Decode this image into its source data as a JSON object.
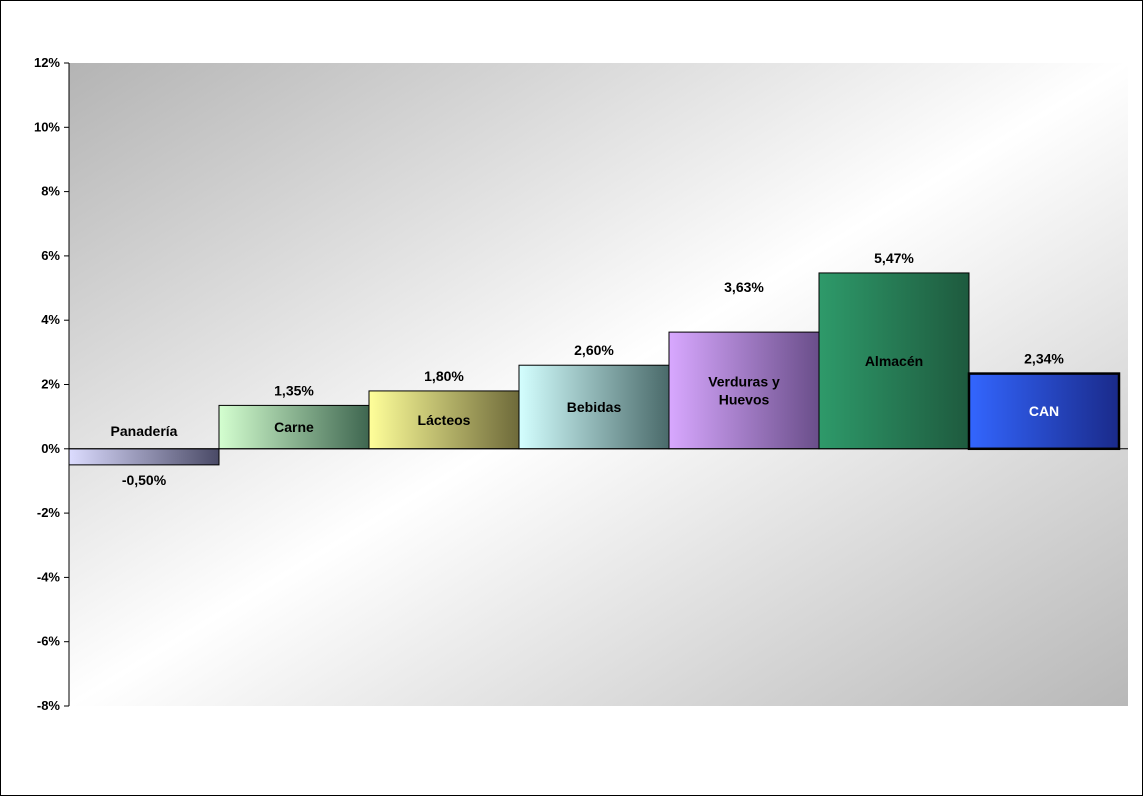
{
  "chart_data": {
    "type": "bar",
    "title": "",
    "xlabel": "",
    "ylabel": "",
    "categories": [
      "Panadería",
      "Carne",
      "Lácteos",
      "Bebidas",
      "Verduras y Huevos",
      "Almacén",
      "CAN"
    ],
    "category_lines": [
      [
        "Panadería"
      ],
      [
        "Carne"
      ],
      [
        "Lácteos"
      ],
      [
        "Bebidas"
      ],
      [
        "Verduras y",
        "Huevos"
      ],
      [
        "Almacén"
      ],
      [
        "CAN"
      ]
    ],
    "values": [
      -0.5,
      1.35,
      1.8,
      2.6,
      3.63,
      5.47,
      2.34
    ],
    "value_labels": [
      "-0,50%",
      "1,35%",
      "1,80%",
      "2,60%",
      "3,63%",
      "5,47%",
      "2,34%"
    ],
    "ylim": [
      -8,
      12
    ],
    "yticks": [
      -8,
      -6,
      -4,
      -2,
      0,
      2,
      4,
      6,
      8,
      10,
      12
    ],
    "ytick_labels": [
      "-8%",
      "-6%",
      "-4%",
      "-2%",
      "0%",
      "2%",
      "4%",
      "6%",
      "8%",
      "10%",
      "12%"
    ],
    "grid": false,
    "legend": "none",
    "bar_colors": [
      [
        "#dcdcff",
        "#4a4a66"
      ],
      [
        "#d4ffd0",
        "#3f6650"
      ],
      [
        "#ffff9a",
        "#6e6a3a"
      ],
      [
        "#d4ffff",
        "#4a6a6a"
      ],
      [
        "#d8a8ff",
        "#6a4e8a"
      ],
      [
        "#2e9a6a",
        "#1e5a3e"
      ],
      [
        "#3366ff",
        "#1a2a8a"
      ]
    ],
    "label_colors": [
      "#000000",
      "#000000",
      "#000000",
      "#000000",
      "#000000",
      "#000000",
      "#ffffff"
    ]
  }
}
